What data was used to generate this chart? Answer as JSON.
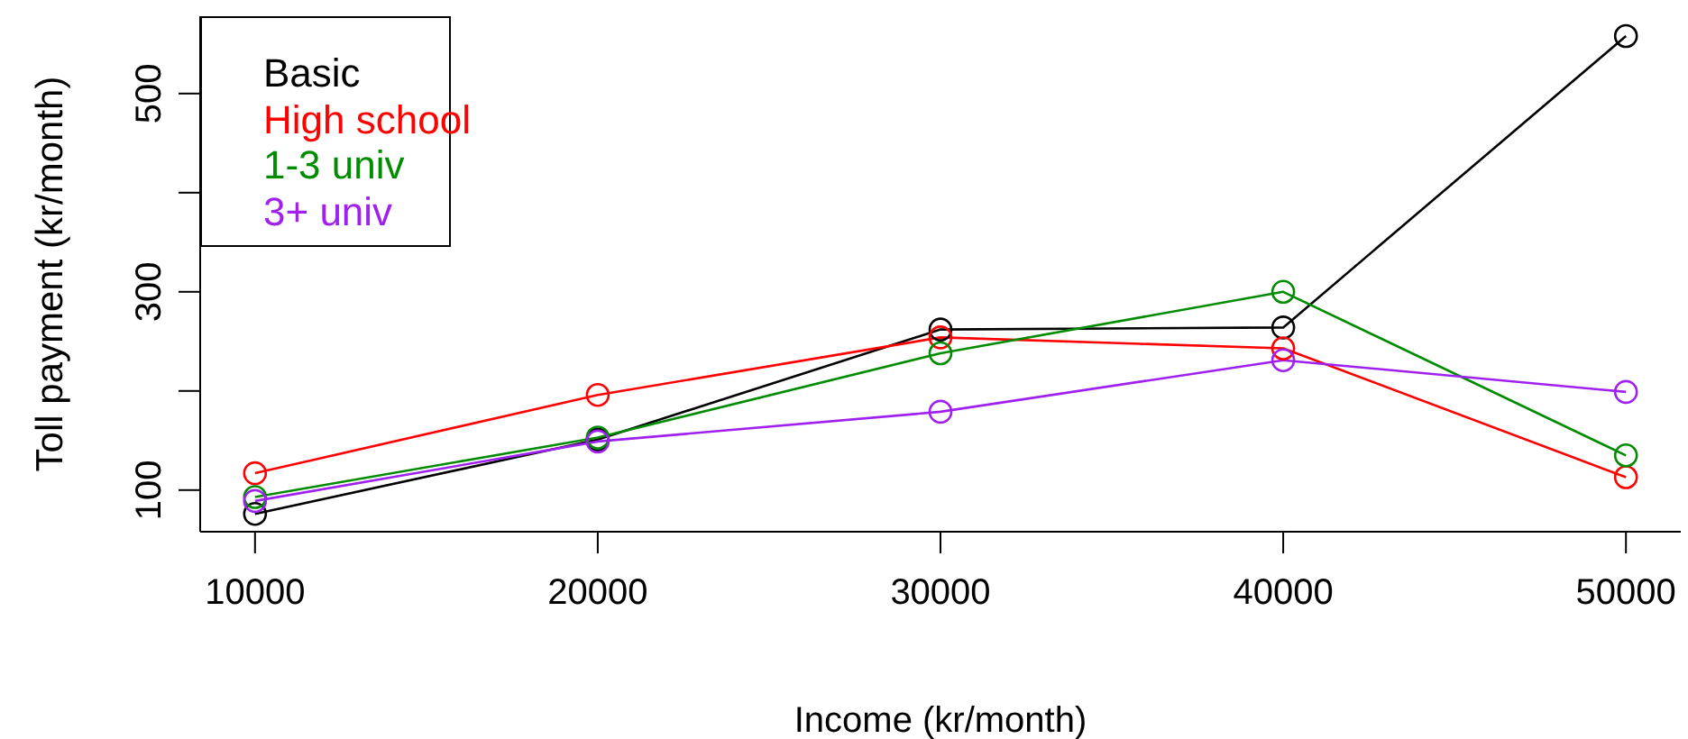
{
  "chart_data": {
    "type": "line",
    "xlabel": "Income (kr/month)",
    "ylabel": "Toll payment (kr/month)",
    "x": [
      10000,
      20000,
      30000,
      40000,
      50000
    ],
    "series": [
      {
        "name": "Basic",
        "color": "#000000",
        "values": [
          76,
          151,
          262,
          264,
          558
        ]
      },
      {
        "name": "High school",
        "color": "#ff0000",
        "values": [
          117,
          196,
          254,
          243,
          113
        ]
      },
      {
        "name": "1-3 univ",
        "color": "#008b00",
        "values": [
          93,
          153,
          238,
          300,
          135
        ]
      },
      {
        "name": "3+ univ",
        "color": "#a020f0",
        "values": [
          89,
          149,
          179,
          231,
          199
        ]
      }
    ],
    "xlim": [
      8400,
      51600
    ],
    "xticks": [
      10000,
      20000,
      30000,
      40000,
      50000
    ],
    "ylim": [
      58,
      578
    ],
    "yticks": [
      100,
      {
        "value": 200,
        "label": null
      },
      300,
      {
        "value": 400,
        "label": null
      },
      500
    ],
    "grid": false,
    "legend": "top left",
    "marker": "circle",
    "line_style": "solid"
  }
}
